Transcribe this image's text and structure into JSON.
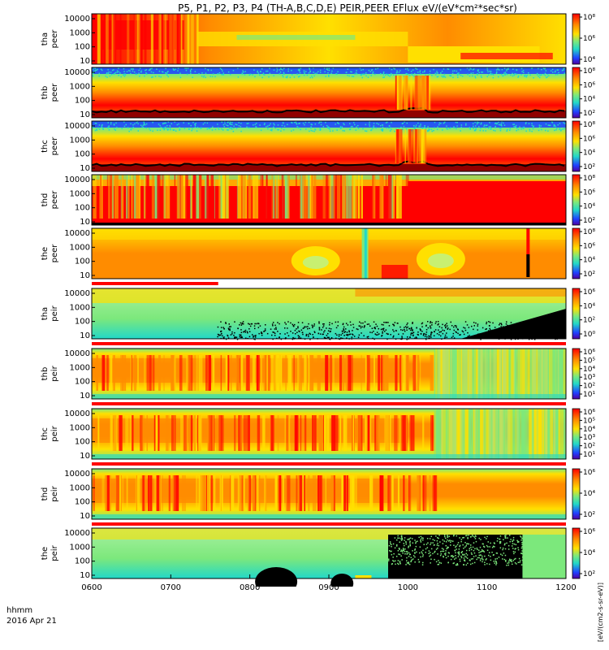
{
  "chart_data": {
    "type": "heatmap",
    "title": "P5, P1, P2, P3, P4 (TH-A,B,C,D,E) PEIR,PEER EFlux eV/(eV*cm²*sec*sr)",
    "x_axis": {
      "ticks": [
        "0600",
        "0700",
        "0800",
        "0900",
        "1000",
        "1100",
        "1200"
      ],
      "minutes": [
        360,
        420,
        480,
        540,
        600,
        660,
        720
      ],
      "range": [
        360,
        720
      ],
      "label_line1": "hhmm",
      "label_line2": "2016 Apr 21"
    },
    "colorbar_unit": "[eV/(cm2-s-sr-eV)]",
    "colors": {
      "red": "#ff0000",
      "orange": "#ff8c00",
      "yellow": "#ffe000",
      "green": "#7ce87c",
      "cyan": "#22d8c8",
      "blue": "#2040ff",
      "dark_red": "#900000",
      "black": "#000000"
    },
    "panels": [
      {
        "probe": "tha",
        "kind": "peer",
        "ylabel": [
          "tha",
          "peer"
        ],
        "yticks": [
          "10",
          "100",
          "1000",
          "10000"
        ],
        "cticks": [
          "10⁸",
          "10⁶",
          "10⁴"
        ]
      },
      {
        "probe": "thb",
        "kind": "peer",
        "ylabel": [
          "thb",
          "peer"
        ],
        "yticks": [
          "10",
          "100",
          "1000",
          "10000"
        ],
        "cticks": [
          "10⁸",
          "10⁶",
          "10⁴",
          "10²"
        ]
      },
      {
        "probe": "thc",
        "kind": "peer",
        "ylabel": [
          "thc",
          "peer"
        ],
        "yticks": [
          "10",
          "100",
          "1000",
          "10000"
        ],
        "cticks": [
          "10⁸",
          "10⁶",
          "10⁴",
          "10²"
        ]
      },
      {
        "probe": "thd",
        "kind": "peer",
        "ylabel": [
          "thd",
          "peer"
        ],
        "yticks": [
          "10",
          "100",
          "1000",
          "10000"
        ],
        "cticks": [
          "10⁸",
          "10⁶",
          "10⁴",
          "10²"
        ]
      },
      {
        "probe": "the",
        "kind": "peer",
        "ylabel": [
          "the",
          "peer"
        ],
        "yticks": [
          "10",
          "100",
          "1000",
          "10000"
        ],
        "cticks": [
          "10⁸",
          "10⁶",
          "10⁴",
          "10²"
        ]
      },
      {
        "probe": "tha",
        "kind": "peir",
        "ylabel": [
          "tha",
          "peir"
        ],
        "yticks": [
          "10",
          "100",
          "1000",
          "10000"
        ],
        "cticks": [
          "10⁶",
          "10⁴",
          "10²",
          "10⁰"
        ]
      },
      {
        "probe": "thb",
        "kind": "peir",
        "ylabel": [
          "thb",
          "peir"
        ],
        "yticks": [
          "10",
          "100",
          "1000",
          "10000"
        ],
        "cticks": [
          "10⁶",
          "10⁵",
          "10⁴",
          "10³",
          "10²",
          "10¹"
        ]
      },
      {
        "probe": "thc",
        "kind": "peir",
        "ylabel": [
          "thc",
          "peir"
        ],
        "yticks": [
          "10",
          "100",
          "1000",
          "10000"
        ],
        "cticks": [
          "10⁶",
          "10⁵",
          "10⁴",
          "10³",
          "10²",
          "10¹"
        ]
      },
      {
        "probe": "thd",
        "kind": "peir",
        "ylabel": [
          "thd",
          "peir"
        ],
        "yticks": [
          "10",
          "100",
          "1000",
          "10000"
        ],
        "cticks": [
          "10⁶",
          "10⁴",
          "10²"
        ]
      },
      {
        "probe": "the",
        "kind": "peir",
        "ylabel": [
          "the",
          "peir"
        ],
        "yticks": [
          "10",
          "100",
          "1000",
          "10000"
        ],
        "cticks": [
          "10⁶",
          "10⁴",
          "10²"
        ]
      }
    ]
  }
}
